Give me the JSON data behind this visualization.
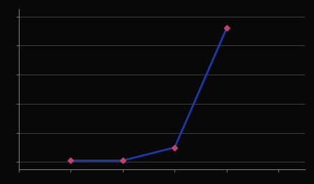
{
  "x": [
    1,
    2,
    3,
    4
  ],
  "y": [
    0.01,
    0.01,
    0.1,
    0.92
  ],
  "line_color": "#1a3aad",
  "marker_color": "#c0446a",
  "marker_style": "D",
  "marker_size": 4,
  "line_width": 2.0,
  "background_color": "#080808",
  "grid_color": "#4a4a4a",
  "spine_color": "#888888",
  "xlim": [
    0.0,
    5.5
  ],
  "ylim": [
    -0.05,
    1.05
  ],
  "xticks": [
    0,
    1,
    2,
    3,
    4,
    5
  ],
  "yticks": [
    0.0,
    0.2,
    0.4,
    0.6,
    0.8,
    1.0
  ],
  "figsize": [
    4.5,
    2.64
  ],
  "dpi": 100
}
